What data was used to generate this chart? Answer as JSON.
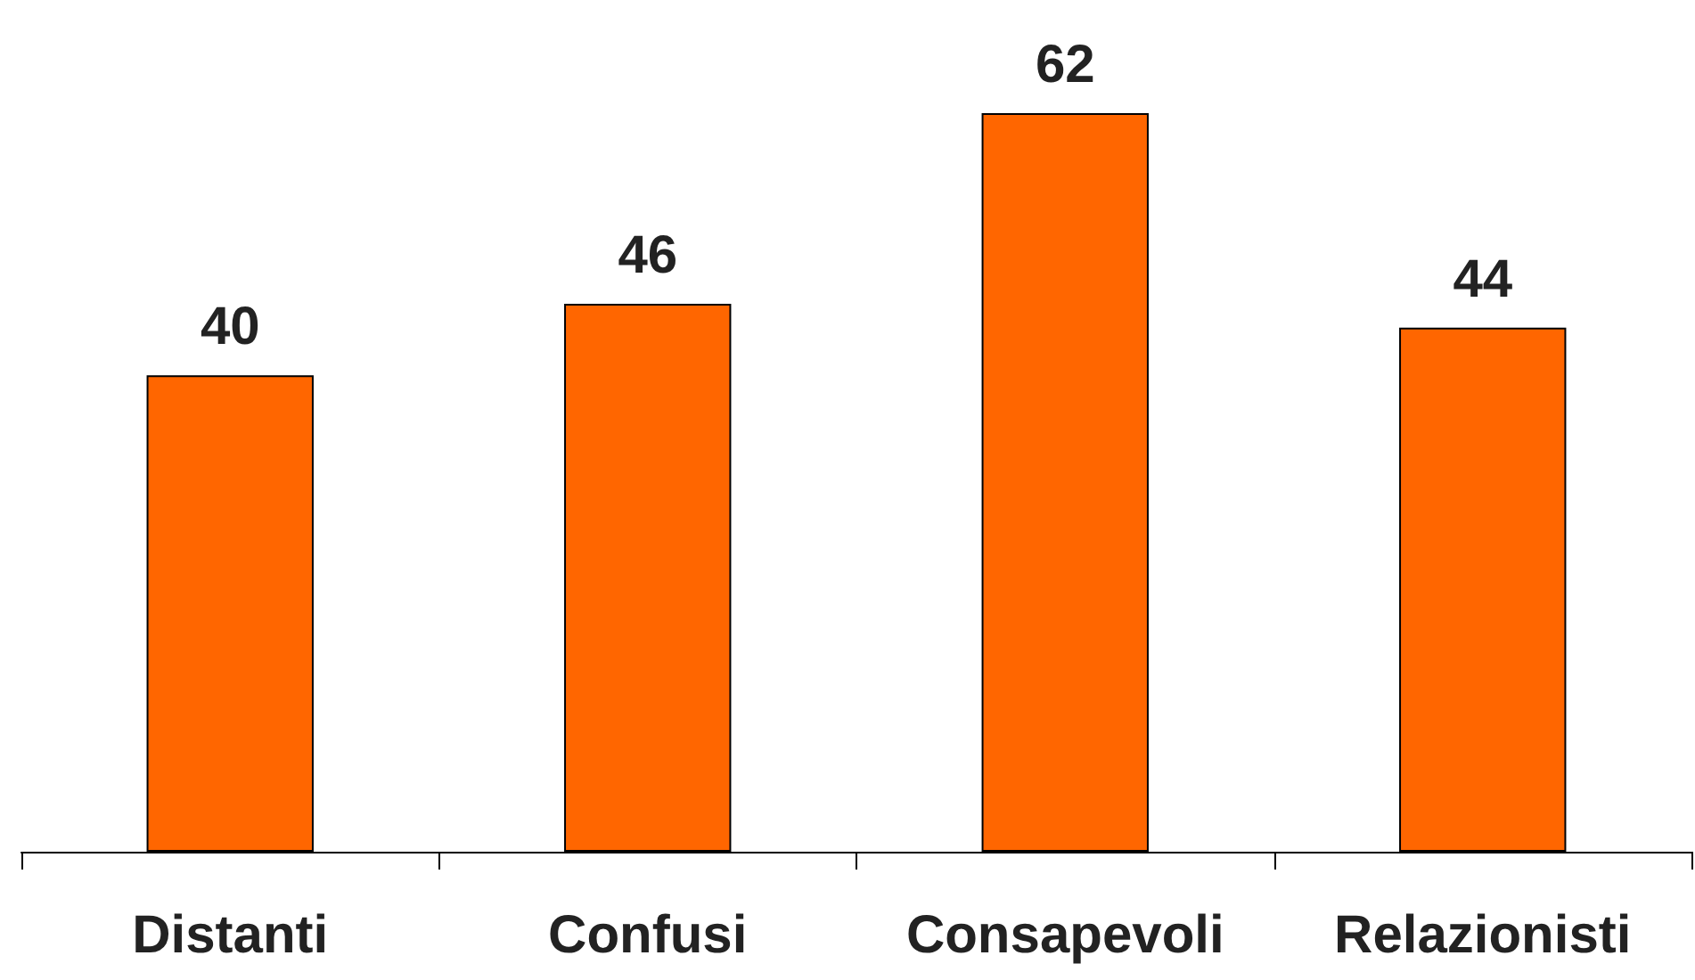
{
  "chart_data": {
    "type": "bar",
    "categories": [
      "Distanti",
      "Confusi",
      "Consapevoli",
      "Relazionisti"
    ],
    "values": [
      40,
      46,
      62,
      44
    ],
    "color": "#ff6600",
    "data_labels": true
  }
}
